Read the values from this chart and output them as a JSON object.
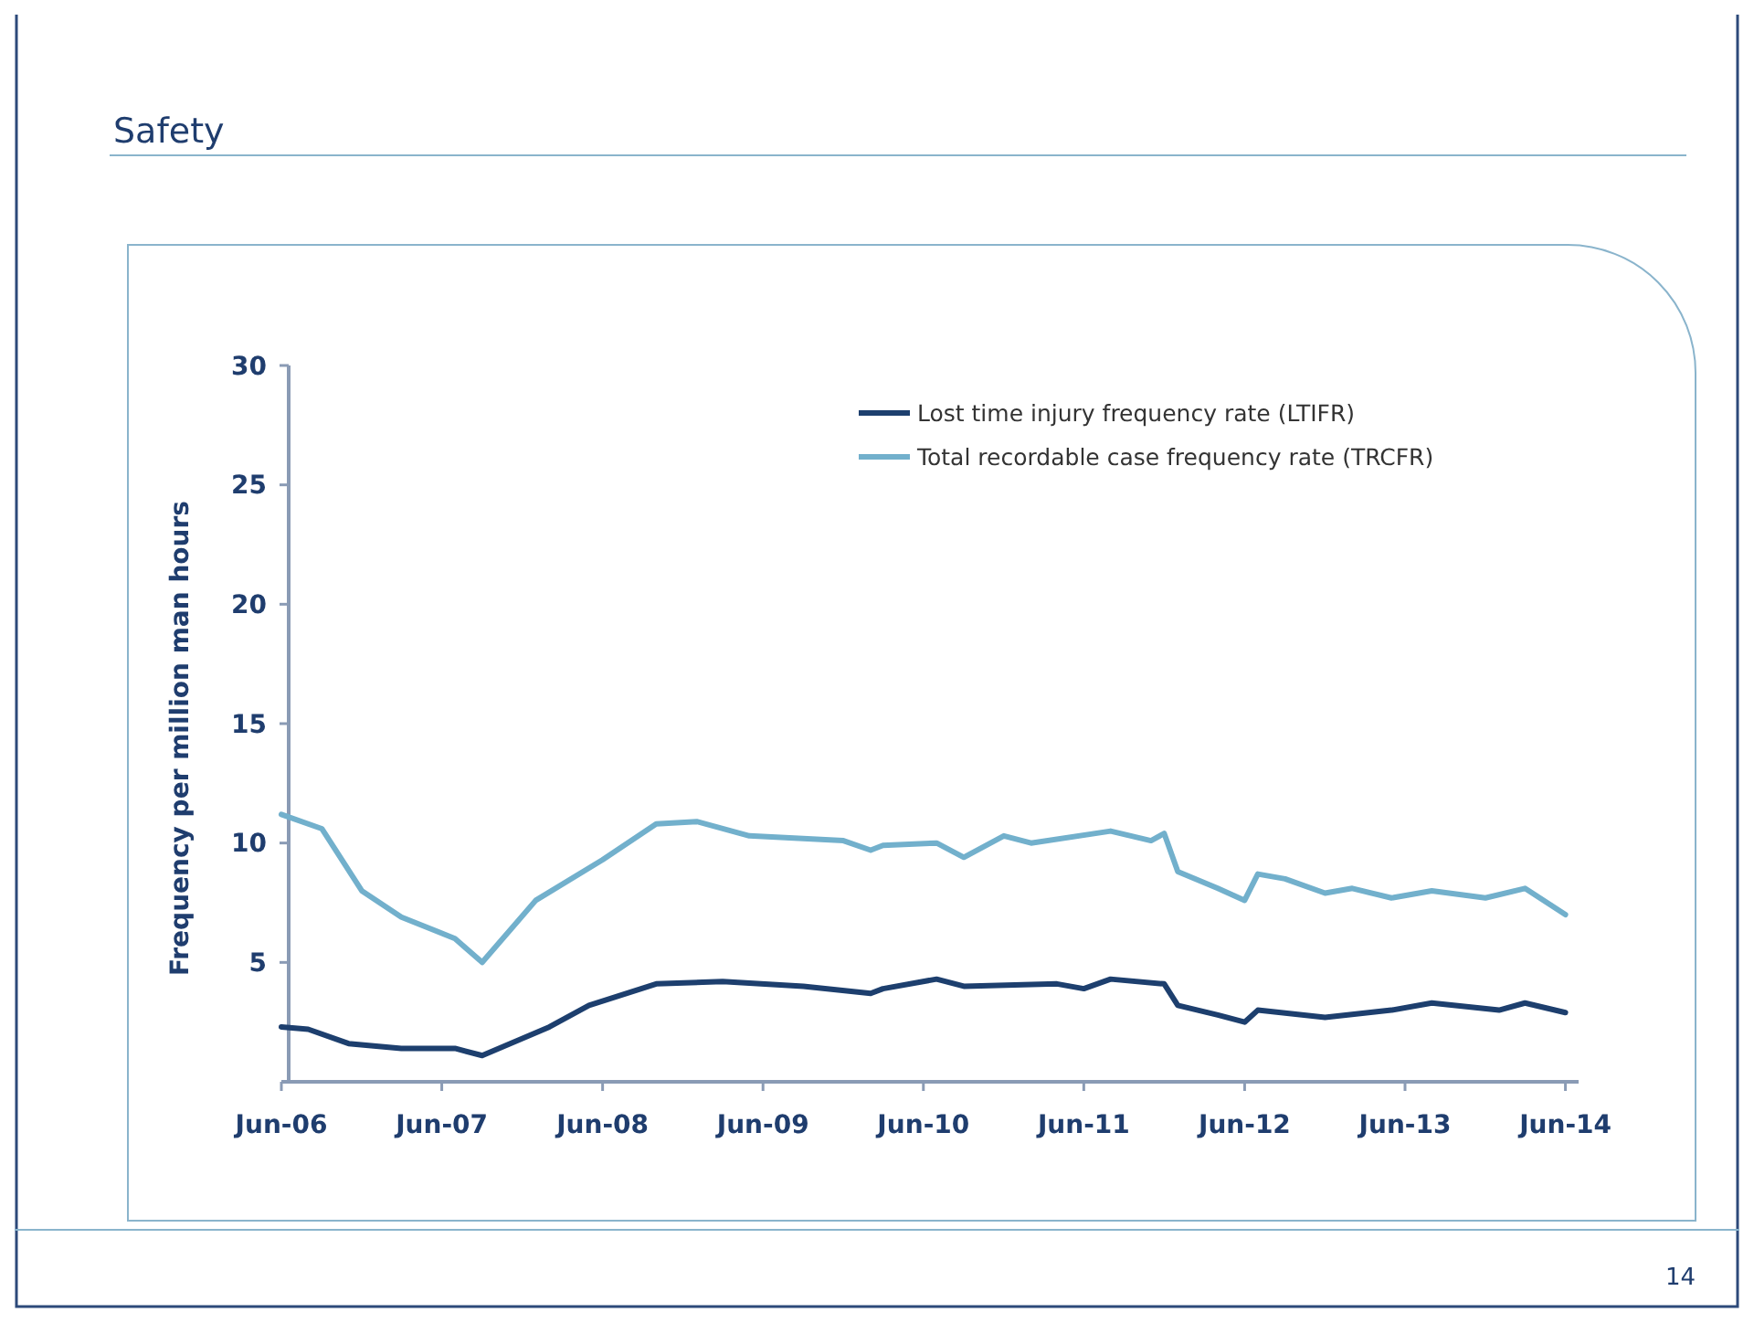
{
  "chart_data": {
    "type": "line",
    "title": "Safety",
    "ylabel": "Frequency per million man hours",
    "annotations": [
      "14"
    ],
    "xlim": [
      "2006-06",
      "2014-07"
    ],
    "xticks": [
      {
        "value": "2006-06",
        "label": "Jun-06"
      },
      {
        "value": "2007-06",
        "label": "Jun-07"
      },
      {
        "value": "2008-06",
        "label": "Jun-08"
      },
      {
        "value": "2009-06",
        "label": "Jun-09"
      },
      {
        "value": "2010-06",
        "label": "Jun-10"
      },
      {
        "value": "2011-06",
        "label": "Jun-11"
      },
      {
        "value": "2012-06",
        "label": "Jun-12"
      },
      {
        "value": "2013-06",
        "label": "Jun-13"
      },
      {
        "value": "2014-06",
        "label": "Jun-14"
      }
    ],
    "ylim": [
      0,
      30
    ],
    "yticks": [
      5,
      10,
      15,
      20,
      25,
      30
    ],
    "grid": false,
    "legend": "top right",
    "line_style": "solid",
    "series": [
      {
        "name": "Lost time injury frequency rate (LTIFR)",
        "color": "#1d3f6e",
        "x": [
          "2006-06",
          "2006-08",
          "2006-11",
          "2007-03",
          "2007-07",
          "2007-09",
          "2008-02",
          "2008-05",
          "2008-10",
          "2009-03",
          "2009-09",
          "2010-02",
          "2010-03",
          "2010-07",
          "2010-09",
          "2011-04",
          "2011-06",
          "2011-08",
          "2011-12",
          "2012-01",
          "2012-04",
          "2012-06",
          "2012-07",
          "2012-12",
          "2013-05",
          "2013-08",
          "2014-01",
          "2014-03",
          "2014-06"
        ],
        "values": [
          2.3,
          2.2,
          1.6,
          1.4,
          1.4,
          1.1,
          2.3,
          3.2,
          4.1,
          4.2,
          4.0,
          3.7,
          3.9,
          4.3,
          4.0,
          4.1,
          3.9,
          4.3,
          4.1,
          3.2,
          2.8,
          2.5,
          3.0,
          2.7,
          3.0,
          3.3,
          3.0,
          3.3,
          2.9
        ]
      },
      {
        "name": "Total recordable case frequency rate (TRCFR)",
        "color": "#72b0cc",
        "x": [
          "2006-06",
          "2006-09",
          "2006-12",
          "2007-03",
          "2007-07",
          "2007-09",
          "2008-01",
          "2008-06",
          "2008-10",
          "2009-01",
          "2009-05",
          "2009-12",
          "2010-02",
          "2010-03",
          "2010-07",
          "2010-09",
          "2010-12",
          "2011-02",
          "2011-08",
          "2011-11",
          "2011-12",
          "2012-01",
          "2012-04",
          "2012-06",
          "2012-07",
          "2012-09",
          "2012-12",
          "2013-02",
          "2013-05",
          "2013-08",
          "2013-12",
          "2014-03",
          "2014-06"
        ],
        "values": [
          11.2,
          10.6,
          8.0,
          6.9,
          6.0,
          5.0,
          7.6,
          9.3,
          10.8,
          10.9,
          10.3,
          10.1,
          9.7,
          9.9,
          10.0,
          9.4,
          10.3,
          10.0,
          10.5,
          10.1,
          10.4,
          8.8,
          8.1,
          7.6,
          8.7,
          8.5,
          7.9,
          8.1,
          7.7,
          8.0,
          7.7,
          8.1,
          7.0
        ]
      }
    ]
  }
}
